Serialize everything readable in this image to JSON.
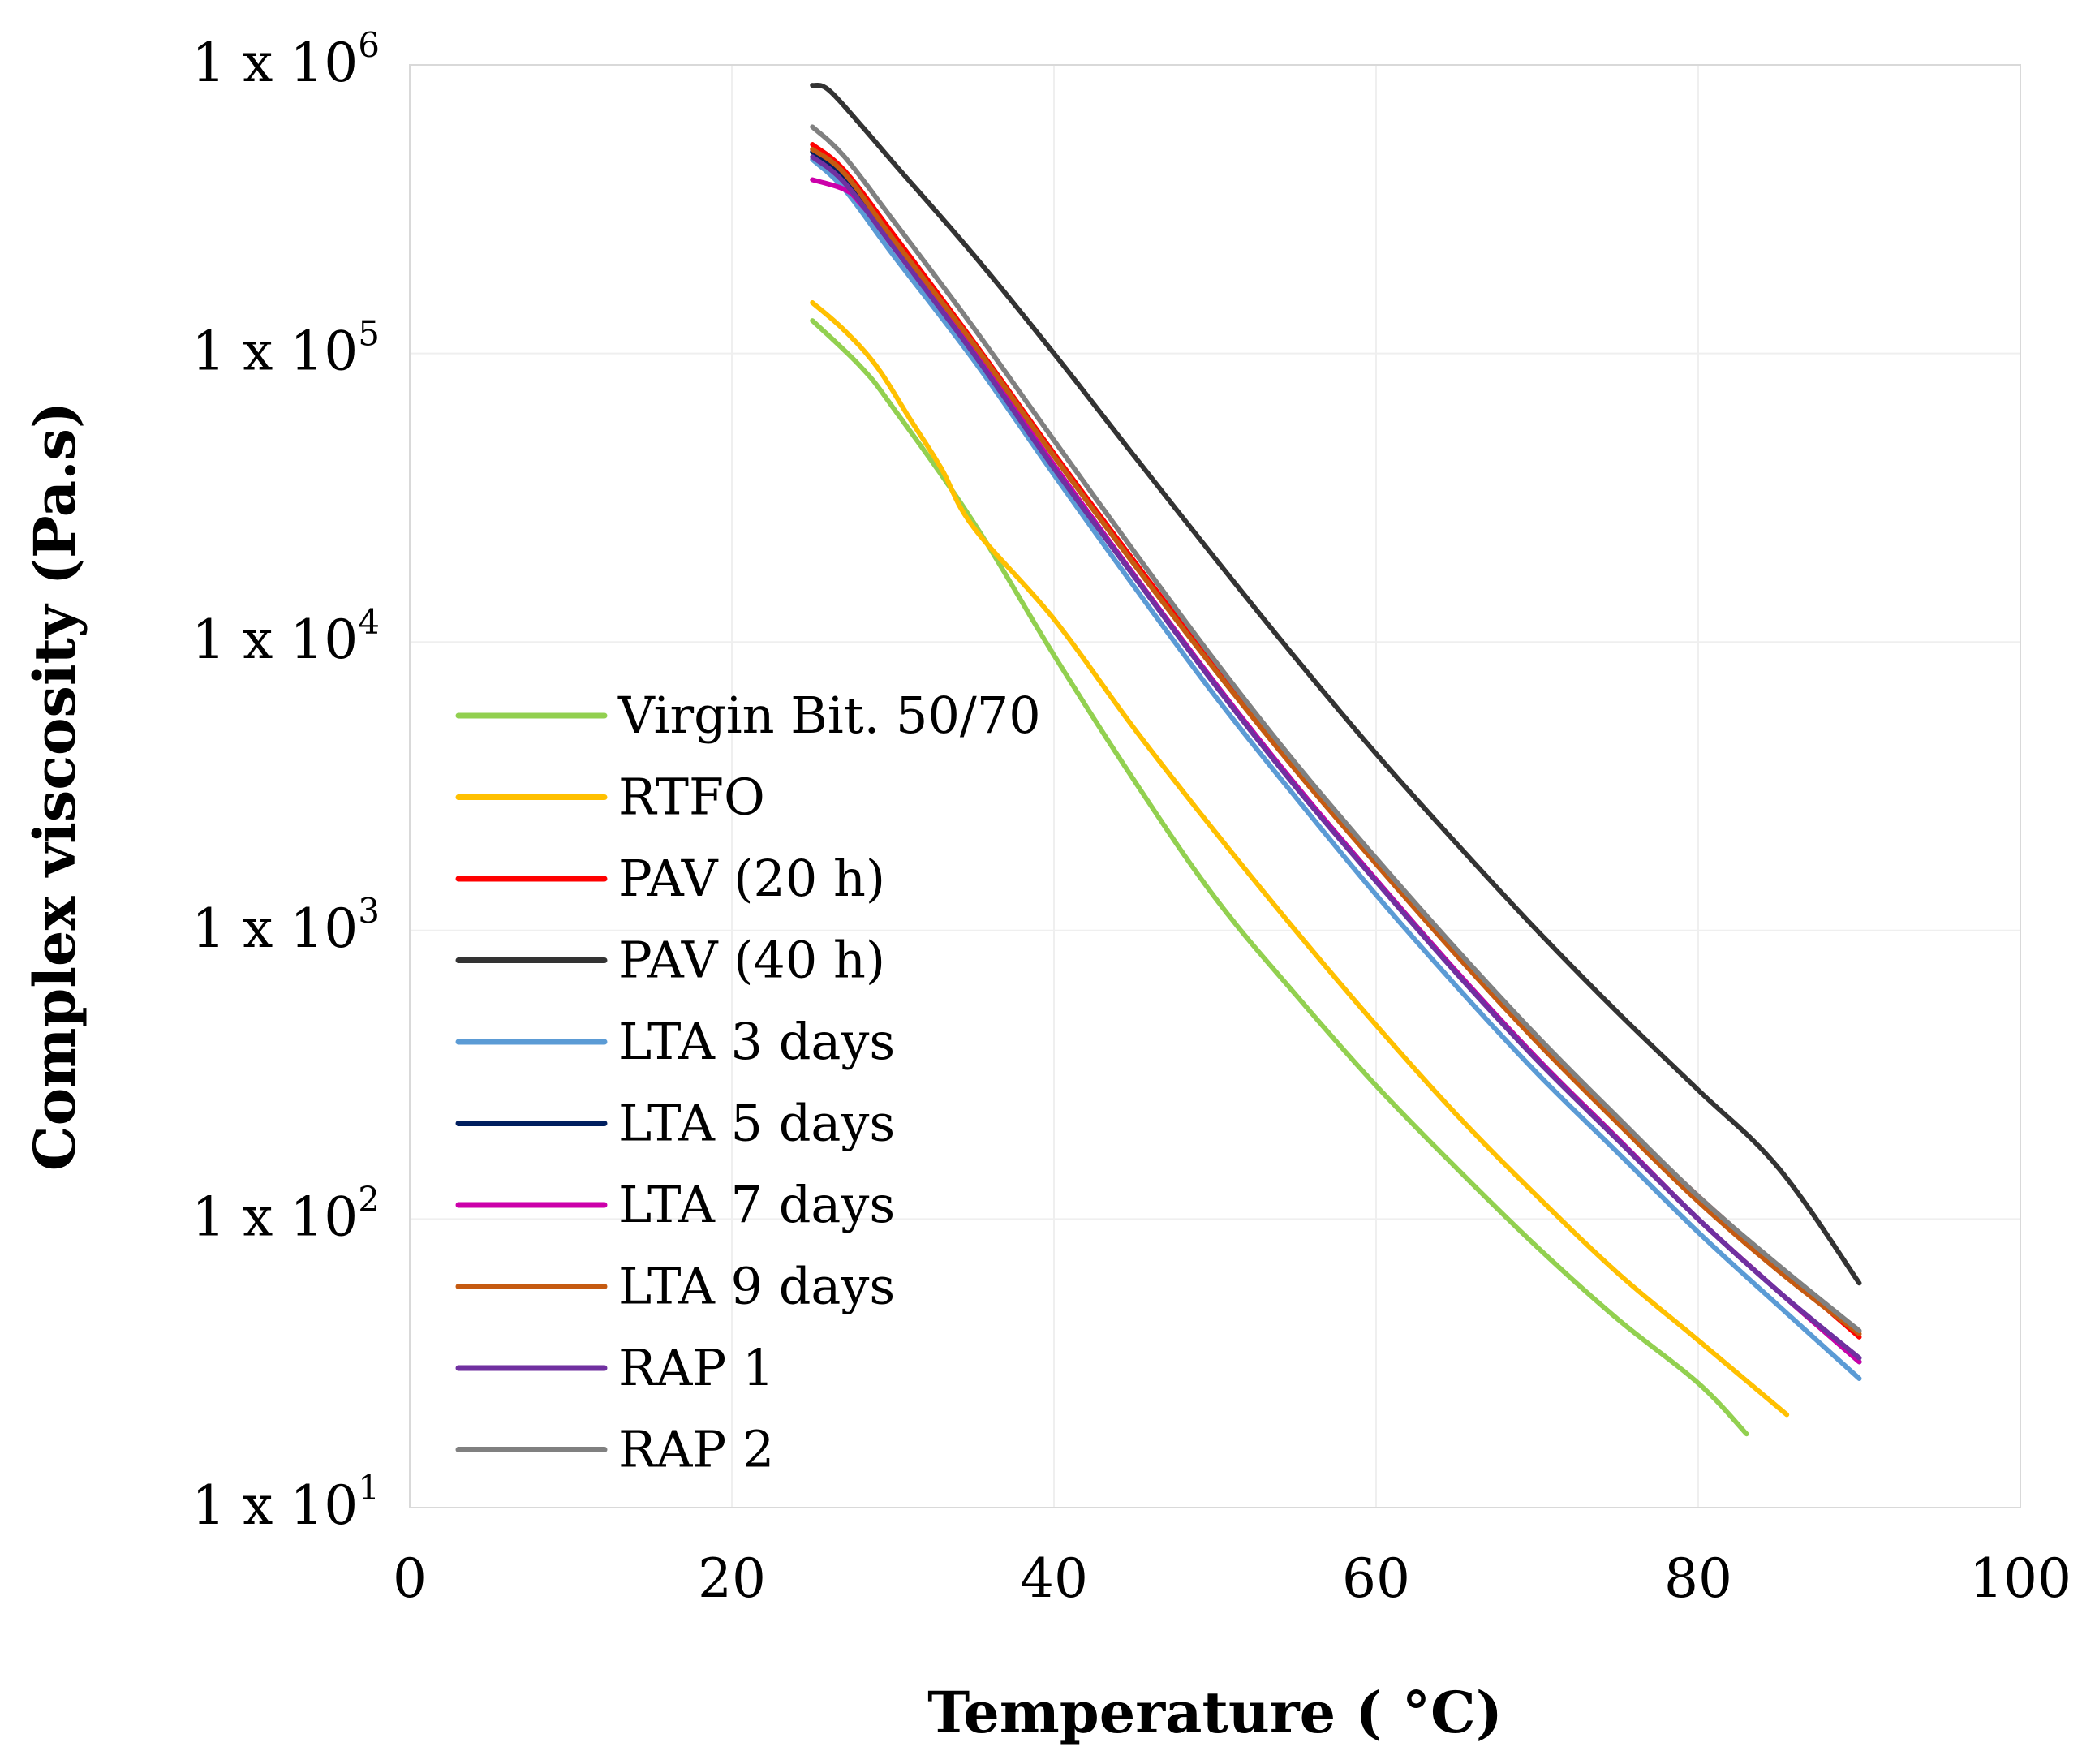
{
  "chart_data": {
    "type": "line",
    "title": "",
    "xlabel": "Temperature ( °C)",
    "ylabel": "Complex viscosity (Pa.s)",
    "xlim": [
      0,
      100
    ],
    "ylim": [
      10,
      1000000
    ],
    "yscale": "log",
    "x_ticks": [
      0,
      20,
      40,
      60,
      80,
      100
    ],
    "x_tick_labels": [
      "0",
      "20",
      "40",
      "60",
      "80",
      "100"
    ],
    "y_ticks": [
      10,
      100,
      1000,
      10000,
      100000,
      1000000
    ],
    "y_tick_labels": [
      {
        "base": "1 x 10",
        "exp": "1"
      },
      {
        "base": "1 x 10",
        "exp": "2"
      },
      {
        "base": "1 x 10",
        "exp": "3"
      },
      {
        "base": "1 x 10",
        "exp": "4"
      },
      {
        "base": "1 x 10",
        "exp": "5"
      },
      {
        "base": "1 x 10",
        "exp": "6"
      }
    ],
    "grid": true,
    "legend_position": "left-middle",
    "series": [
      {
        "name": "Virgin Bit. 50/70",
        "color": "#92d050",
        "x": [
          25,
          28,
          30,
          35,
          40,
          45,
          50,
          55,
          60,
          65,
          70,
          75,
          80,
          83
        ],
        "y": [
          130000,
          90000,
          65000,
          26000,
          9000,
          3300,
          1300,
          600,
          290,
          150,
          80,
          45,
          27,
          18
        ]
      },
      {
        "name": "RTFO",
        "color": "#ffc000",
        "x": [
          25,
          27,
          29,
          31,
          33,
          35,
          40,
          45,
          50,
          55,
          60,
          65,
          70,
          75,
          80,
          85.5
        ],
        "y": [
          150000,
          120000,
          90000,
          60000,
          40000,
          25000,
          12000,
          5000,
          2200,
          1000,
          470,
          230,
          120,
          65,
          38,
          21
        ]
      },
      {
        "name": "PAV (20 h)",
        "color": "#ff0000",
        "x": [
          25,
          27,
          30,
          35,
          40,
          45,
          50,
          55,
          60,
          65,
          70,
          75,
          80,
          85,
          90
        ],
        "y": [
          530000,
          430000,
          260000,
          110000,
          45000,
          19000,
          8200,
          3700,
          1750,
          840,
          420,
          220,
          120,
          68,
          39
        ]
      },
      {
        "name": "PAV (40 h)",
        "color": "#333333",
        "x": [
          25,
          26,
          28,
          30,
          35,
          40,
          45,
          50,
          55,
          60,
          65,
          70,
          75,
          80,
          85,
          90
        ],
        "y": [
          850000,
          820000,
          620000,
          460000,
          220000,
          100000,
          44000,
          19500,
          8800,
          4100,
          2000,
          1000,
          520,
          280,
          150,
          60
        ]
      },
      {
        "name": "LTA 3 days",
        "color": "#5b9bd5",
        "x": [
          25,
          27,
          30,
          35,
          40,
          45,
          50,
          55,
          60,
          65,
          70,
          75,
          80,
          85,
          90
        ],
        "y": [
          470000,
          370000,
          220000,
          95000,
          38000,
          15500,
          6500,
          2900,
          1330,
          640,
          320,
          170,
          90,
          50,
          28
        ]
      },
      {
        "name": "LTA 5 days",
        "color": "#001f5f",
        "x": [
          25,
          27,
          30,
          35,
          40,
          45,
          50,
          55,
          60,
          65,
          70,
          75,
          80,
          85,
          90
        ],
        "y": [
          500000,
          400000,
          240000,
          102000,
          41000,
          17000,
          7200,
          3200,
          1500,
          720,
          360,
          190,
          100,
          56,
          32
        ]
      },
      {
        "name": "LTA 7 days",
        "color": "#cc00aa",
        "x": [
          25,
          27,
          28,
          30,
          35,
          40,
          45,
          50,
          55,
          60,
          65,
          70,
          75,
          80,
          85,
          90
        ],
        "y": [
          400000,
          370000,
          330000,
          240000,
          102000,
          41000,
          17000,
          7200,
          3200,
          1500,
          720,
          360,
          190,
          100,
          56,
          32
        ]
      },
      {
        "name": "LTA 9 days",
        "color": "#c55a11",
        "x": [
          25,
          27,
          30,
          35,
          40,
          45,
          50,
          55,
          60,
          65,
          70,
          75,
          80,
          85,
          90
        ],
        "y": [
          510000,
          420000,
          250000,
          108000,
          44000,
          18500,
          8000,
          3600,
          1700,
          820,
          410,
          215,
          115,
          66,
          40
        ]
      },
      {
        "name": "RAP 1",
        "color": "#7030a0",
        "x": [
          25,
          27,
          30,
          35,
          40,
          45,
          50,
          55,
          60,
          65,
          70,
          75,
          80,
          85,
          90
        ],
        "y": [
          480000,
          390000,
          235000,
          100000,
          40000,
          16800,
          7100,
          3150,
          1480,
          710,
          355,
          188,
          100,
          56,
          33
        ]
      },
      {
        "name": "RAP 2",
        "color": "#808080",
        "x": [
          25,
          27,
          30,
          35,
          40,
          45,
          50,
          55,
          60,
          65,
          70,
          75,
          80,
          85,
          90
        ],
        "y": [
          610000,
          480000,
          290000,
          123000,
          50000,
          20500,
          8600,
          3800,
          1780,
          860,
          430,
          225,
          120,
          69,
          41
        ]
      }
    ]
  }
}
